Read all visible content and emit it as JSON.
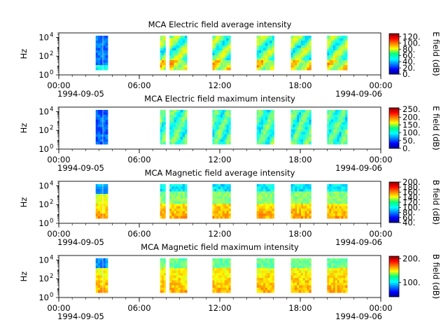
{
  "figure": {
    "x_axis": {
      "start_date": "1994-09-05",
      "end_date": "1994-09-06",
      "hour_range": [
        0,
        24
      ],
      "major_tick_hours": [
        0,
        6,
        12,
        18,
        24
      ],
      "major_tick_labels": [
        "00:00",
        "06:00",
        "12:00",
        "18:00",
        "00:00"
      ],
      "minor_tick_step_hours": 1
    },
    "data_intervals_hours": [
      [
        2.75,
        3.25
      ],
      [
        3.3,
        3.65
      ],
      [
        7.55,
        7.95
      ],
      [
        8.25,
        9.55
      ],
      [
        11.45,
        12.8
      ],
      [
        14.75,
        16.05
      ],
      [
        17.3,
        18.8
      ],
      [
        20.0,
        21.5
      ]
    ]
  },
  "chart_data": [
    {
      "type": "heatmap",
      "title": "MCA  Electric field average intensity",
      "ylabel": "Hz",
      "yscale": "log",
      "y_tick_labels": [
        {
          "base": "10",
          "exp": "0"
        },
        {
          "base": "10",
          "exp": "2"
        },
        {
          "base": "10",
          "exp": "4"
        }
      ],
      "ylim": [
        1,
        30000
      ],
      "colorbar": {
        "label": "E field (dB)",
        "vmin": 0,
        "vmax": 130,
        "ticks": [
          0,
          20,
          40,
          60,
          80,
          100,
          120
        ],
        "tick_labels": [
          "0.",
          "20.",
          "40.",
          "60.",
          "80.",
          "100.",
          "120."
        ]
      },
      "colormap": "jet"
    },
    {
      "type": "heatmap",
      "title": "MCA  Electric field maximum intensity",
      "ylabel": "Hz",
      "yscale": "log",
      "y_tick_labels": [
        {
          "base": "10",
          "exp": "0"
        },
        {
          "base": "10",
          "exp": "2"
        },
        {
          "base": "10",
          "exp": "4"
        }
      ],
      "ylim": [
        1,
        30000
      ],
      "colorbar": {
        "label": "E field (dB)",
        "vmin": 0,
        "vmax": 260,
        "ticks": [
          0,
          50,
          100,
          150,
          200,
          250
        ],
        "tick_labels": [
          "0.",
          "50.",
          "100.",
          "150.",
          "200.",
          "250."
        ]
      },
      "colormap": "jet"
    },
    {
      "type": "heatmap",
      "title": "MCA  Magnetic field average intensity",
      "ylabel": "Hz",
      "yscale": "log",
      "y_tick_labels": [
        {
          "base": "10",
          "exp": "0"
        },
        {
          "base": "10",
          "exp": "2"
        },
        {
          "base": "10",
          "exp": "4"
        }
      ],
      "ylim": [
        1,
        30000
      ],
      "colorbar": {
        "label": "B field (dB)",
        "vmin": 40,
        "vmax": 200,
        "ticks": [
          40,
          60,
          80,
          100,
          120,
          140,
          160,
          180,
          200
        ],
        "tick_labels": [
          "40.",
          "60.",
          "80.",
          "100.",
          "120.",
          "140.",
          "160.",
          "180.",
          "200."
        ]
      },
      "colormap": "jet"
    },
    {
      "type": "heatmap",
      "title": "MCA  Magnetic field maximum intensity",
      "ylabel": "Hz",
      "yscale": "log",
      "y_tick_labels": [
        {
          "base": "10",
          "exp": "0"
        },
        {
          "base": "10",
          "exp": "2"
        },
        {
          "base": "10",
          "exp": "4"
        }
      ],
      "ylim": [
        1,
        30000
      ],
      "colorbar": {
        "label": "B field (dB)",
        "vmin": 40,
        "vmax": 210,
        "ticks": [
          100,
          200
        ],
        "tick_labels": [
          "100.",
          "200."
        ]
      },
      "colormap": "jet"
    }
  ]
}
